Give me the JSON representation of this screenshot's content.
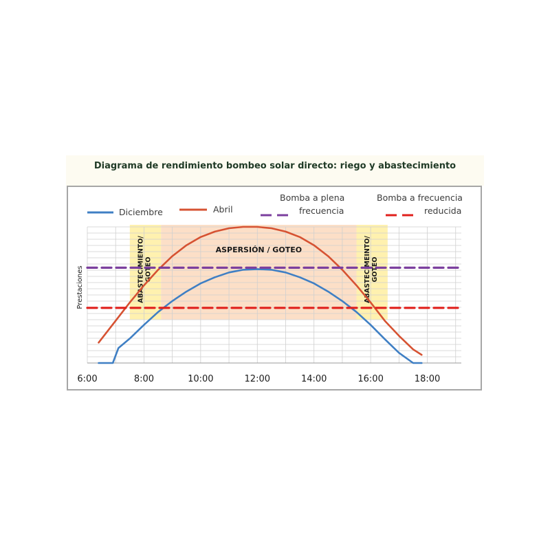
{
  "chart_data": {
    "type": "line",
    "title": "Diagrama de rendimiento bombeo solar directo: riego y abastecimiento",
    "xlabel": "",
    "ylabel": "Prestaciones",
    "x_unit": "hours",
    "x_ticks": [
      "6:00",
      "8:00",
      "10:00",
      "12:00",
      "14:00",
      "16:00",
      "18:00"
    ],
    "x_tick_values": [
      6,
      8,
      10,
      12,
      14,
      16,
      18
    ],
    "xlim": [
      6,
      19.2
    ],
    "ylim": [
      0,
      10
    ],
    "grid": true,
    "legend_placement": "top",
    "series": [
      {
        "name": "Diciembre",
        "color": "#3f7fc4",
        "style": "solid",
        "x": [
          6.4,
          6.9,
          7.1,
          7.5,
          8.0,
          8.5,
          9.0,
          9.5,
          10.0,
          10.5,
          11.0,
          11.5,
          12.0,
          12.5,
          13.0,
          13.5,
          14.0,
          14.5,
          15.0,
          15.5,
          16.0,
          16.5,
          17.0,
          17.5,
          17.8
        ],
        "y": [
          0.0,
          0.0,
          1.1,
          1.8,
          2.8,
          3.75,
          4.55,
          5.25,
          5.85,
          6.3,
          6.65,
          6.85,
          6.9,
          6.85,
          6.65,
          6.3,
          5.85,
          5.25,
          4.55,
          3.75,
          2.8,
          1.75,
          0.75,
          0.0,
          0.0
        ]
      },
      {
        "name": "Abril",
        "color": "#d65232",
        "style": "solid",
        "x": [
          6.4,
          7.0,
          7.5,
          8.0,
          8.5,
          9.0,
          9.5,
          10.0,
          10.5,
          11.0,
          11.5,
          12.0,
          12.5,
          13.0,
          13.5,
          14.0,
          14.5,
          15.0,
          15.5,
          16.0,
          16.5,
          17.0,
          17.5,
          17.8
        ],
        "y": [
          1.5,
          3.1,
          4.45,
          5.7,
          6.85,
          7.85,
          8.65,
          9.25,
          9.65,
          9.9,
          10.0,
          10.0,
          9.9,
          9.65,
          9.25,
          8.65,
          7.85,
          6.85,
          5.7,
          4.45,
          3.1,
          2.0,
          1.0,
          0.6
        ]
      },
      {
        "name": "Bomba a plena frecuencia",
        "color": "#7b3f9e",
        "style": "dashed",
        "x": [
          6,
          19.2
        ],
        "y": [
          7.0,
          7.0
        ]
      },
      {
        "name": "Bomba a frecuencia reducida",
        "color": "#e0201c",
        "style": "dashed",
        "x": [
          6,
          19.2
        ],
        "y": [
          4.05,
          4.05
        ]
      }
    ],
    "annotations": [
      {
        "text": "ASPERSIÓN / GOTEO",
        "x_range": [
          8.6,
          15.5
        ],
        "color": "#fcd9bd"
      },
      {
        "text": "ABASTECIMIENTO/ GOTEO",
        "x_range": [
          7.5,
          8.6
        ],
        "color": "#fff0a6"
      },
      {
        "text": "ABASTECIMEINTO/ GOTEO",
        "x_range": [
          15.5,
          16.6
        ],
        "color": "#fff0a6"
      }
    ],
    "legend_rows": [
      {
        "series": 0,
        "lines": [
          "Diciembre"
        ]
      },
      {
        "series": 1,
        "lines": [
          "Abril"
        ]
      },
      {
        "series": 2,
        "lines": [
          "Bomba a plena",
          "frecuencia"
        ]
      },
      {
        "series": 3,
        "lines": [
          "Bomba a frecuencia",
          "reducida"
        ]
      }
    ]
  }
}
